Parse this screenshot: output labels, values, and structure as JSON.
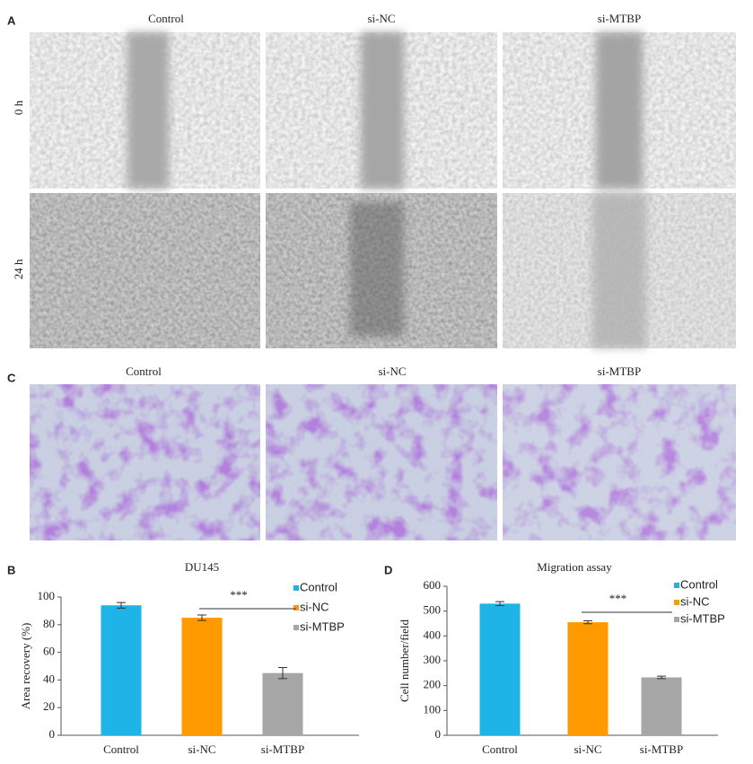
{
  "panel_labels": {
    "a": "A",
    "c": "C",
    "b": "B",
    "d": "D"
  },
  "wound_assay": {
    "columns": [
      "Control",
      "si-NC",
      "si-MTBP"
    ],
    "rows": [
      "0 h",
      "24 h"
    ]
  },
  "transwell_assay": {
    "columns": [
      "Control",
      "si-NC",
      "si-MTBP"
    ]
  },
  "chart_data": [
    {
      "type": "bar",
      "title": "DU145",
      "y_label": "Area recovery (%)",
      "categories": [
        "Control",
        "si-NC",
        "si-MTBP"
      ],
      "values": [
        94,
        85,
        45
      ],
      "errors": [
        2,
        2,
        4
      ],
      "colors": [
        "#1fb4e8",
        "#ff9900",
        "#a6a6a6"
      ],
      "ylim": [
        0,
        100
      ],
      "yticks": [
        0,
        20,
        40,
        60,
        80,
        100
      ],
      "legend": "upper right",
      "significance": "***"
    },
    {
      "type": "bar",
      "title": "Migration assay",
      "y_label": "Cell number/field",
      "categories": [
        "Control",
        "si-NC",
        "si-MTBP"
      ],
      "values": [
        530,
        455,
        233
      ],
      "errors": [
        8,
        6,
        5
      ],
      "colors": [
        "#1fb4e8",
        "#ff9900",
        "#a6a6a6"
      ],
      "ylim": [
        0,
        600
      ],
      "yticks": [
        0,
        100,
        200,
        300,
        400,
        500,
        600
      ],
      "legend": "upper right",
      "significance": "***"
    }
  ]
}
